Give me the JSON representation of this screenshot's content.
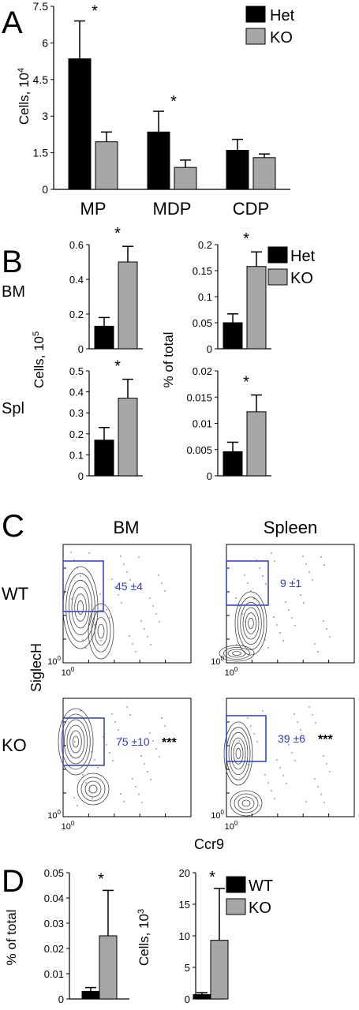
{
  "colors": {
    "het": "#000000",
    "ko": "#a6a6a6",
    "gate": "#3a48c4",
    "gate_text": "#2f3fbf",
    "axis": "#000000"
  },
  "panels": {
    "A": {
      "letter": "A",
      "chart_data": {
        "type": "bar",
        "categories": [
          "MP",
          "MDP",
          "CDP"
        ],
        "series": [
          {
            "name": "Het",
            "values": [
              5.35,
              2.35,
              1.6
            ],
            "errors": [
              1.55,
              0.85,
              0.45
            ]
          },
          {
            "name": "KO",
            "values": [
              1.95,
              0.9,
              1.3
            ],
            "errors": [
              0.4,
              0.3,
              0.15
            ]
          }
        ],
        "ylabel_base": "Cells, 10",
        "ylabel_exp": "4",
        "ylim": [
          0,
          7.5
        ],
        "yticks": [
          "0",
          "1.5",
          "3",
          "4.5",
          "6",
          "7.5"
        ],
        "significance": [
          "*",
          "*",
          ""
        ],
        "legend": [
          "Het",
          "KO"
        ]
      }
    },
    "B": {
      "letter": "B",
      "legend": [
        "Het",
        "KO"
      ],
      "row_labels": [
        "BM",
        "Spl"
      ],
      "ylabel_left_base": "Cells, 10",
      "ylabel_left_exp": "5",
      "ylabel_right": "% of total",
      "chart_data": [
        {
          "type": "bar",
          "row": "BM",
          "series": [
            {
              "name": "Het",
              "values": [
                0.13
              ],
              "errors": [
                0.05
              ]
            },
            {
              "name": "KO",
              "values": [
                0.5
              ],
              "errors": [
                0.09
              ]
            }
          ],
          "ylim": [
            0,
            0.6
          ],
          "yticks": [
            "0",
            "0.2",
            "0.4",
            "0.6"
          ],
          "significance": "*"
        },
        {
          "type": "bar",
          "row": "BM",
          "series": [
            {
              "name": "Het",
              "values": [
                0.05
              ],
              "errors": [
                0.017
              ]
            },
            {
              "name": "KO",
              "values": [
                0.158
              ],
              "errors": [
                0.028
              ]
            }
          ],
          "ylim": [
            0,
            0.2
          ],
          "yticks": [
            "0",
            "0.05",
            "0.1",
            "0.15",
            "0.2"
          ],
          "significance": "*"
        },
        {
          "type": "bar",
          "row": "Spl",
          "series": [
            {
              "name": "Het",
              "values": [
                0.17
              ],
              "errors": [
                0.06
              ]
            },
            {
              "name": "KO",
              "values": [
                0.37
              ],
              "errors": [
                0.09
              ]
            }
          ],
          "ylim": [
            0,
            0.5
          ],
          "yticks": [
            "0",
            "0.1",
            "0.2",
            "0.3",
            "0.4",
            "0.5"
          ],
          "significance": "*"
        },
        {
          "type": "bar",
          "row": "Spl",
          "series": [
            {
              "name": "Het",
              "values": [
                0.0046
              ],
              "errors": [
                0.0018
              ]
            },
            {
              "name": "KO",
              "values": [
                0.0122
              ],
              "errors": [
                0.0032
              ]
            }
          ],
          "ylim": [
            0,
            0.02
          ],
          "yticks": [
            "0",
            "0.005",
            "0.01",
            "0.015",
            "0.02"
          ],
          "significance": "*"
        }
      ]
    },
    "C": {
      "letter": "C",
      "col_labels": [
        "BM",
        "Spleen"
      ],
      "row_labels": [
        "WT",
        "KO"
      ],
      "ylabel": "SiglecH",
      "xlabel": "Ccr9",
      "tick_base": "10",
      "tick_exp": "0",
      "gates": [
        {
          "value": "45 ±4",
          "stars": ""
        },
        {
          "value": "9 ±1",
          "stars": ""
        },
        {
          "value": "75 ±10",
          "stars": "***"
        },
        {
          "value": "39 ±6",
          "stars": "***"
        }
      ]
    },
    "D": {
      "letter": "D",
      "legend": [
        "WT",
        "KO"
      ],
      "ylabel_left": "% of total",
      "ylabel_right_base": "Cells, 10",
      "ylabel_right_exp": "3",
      "chart_data": [
        {
          "type": "bar",
          "series": [
            {
              "name": "WT",
              "values": [
                0.003
              ],
              "errors": [
                0.0015
              ]
            },
            {
              "name": "KO",
              "values": [
                0.025
              ],
              "errors": [
                0.018
              ]
            }
          ],
          "ylim": [
            0,
            0.05
          ],
          "yticks": [
            "0",
            "0.01",
            "0.02",
            "0.03",
            "0.04",
            "0.05"
          ],
          "significance": "*"
        },
        {
          "type": "bar",
          "series": [
            {
              "name": "WT",
              "values": [
                0.7
              ],
              "errors": [
                0.3
              ]
            },
            {
              "name": "KO",
              "values": [
                9.3
              ],
              "errors": [
                8.2
              ]
            }
          ],
          "ylim": [
            0,
            20
          ],
          "yticks": [
            "0",
            "5",
            "10",
            "15",
            "20"
          ],
          "significance": "*"
        }
      ]
    }
  }
}
